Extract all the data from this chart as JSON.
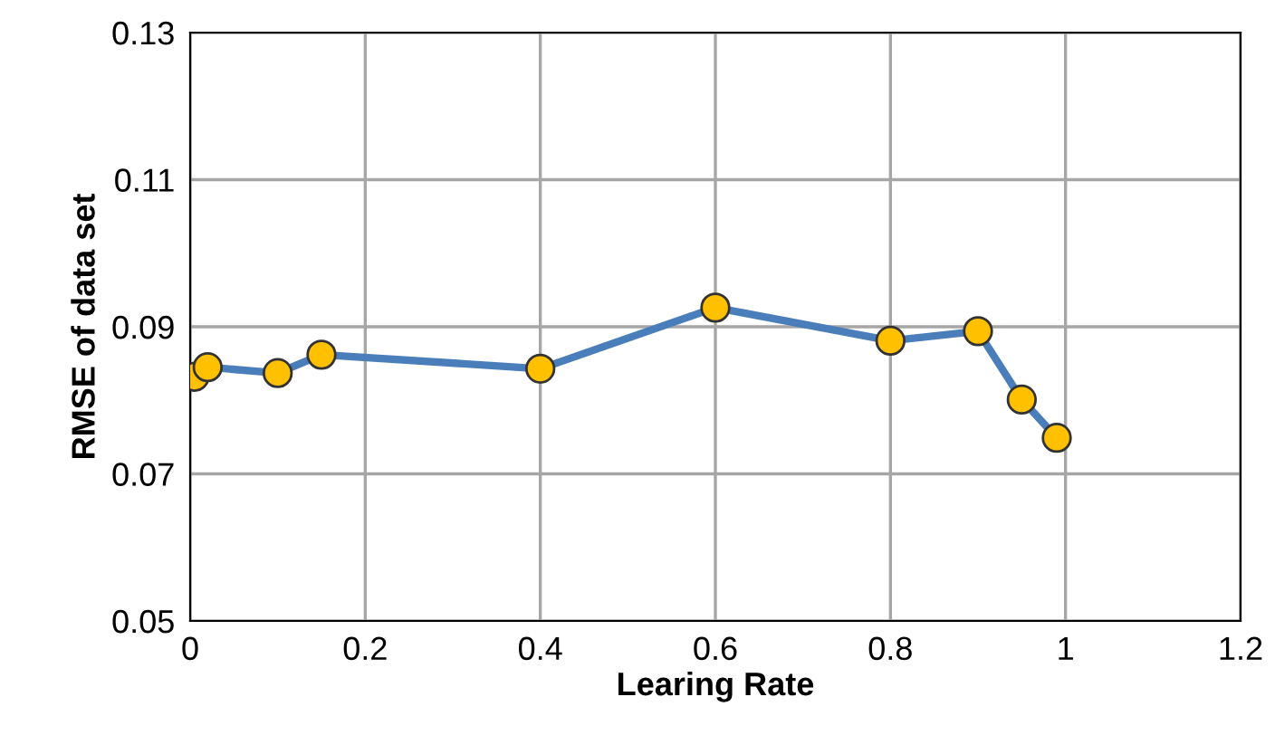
{
  "chart_data": {
    "type": "line",
    "xlabel": "Learing Rate",
    "ylabel": "RMSE of data set",
    "x": [
      0.005,
      0.02,
      0.1,
      0.15,
      0.4,
      0.6,
      0.8,
      0.9,
      0.95,
      0.99
    ],
    "series": [
      {
        "color": "#4a7ebb",
        "colors": [
          "#ffc000",
          "#ffc000",
          "#ffc000",
          "#ffc000",
          "#ffc000",
          "#ffc000",
          "#ffc000",
          "#ffc000",
          "#ffc000",
          "#ffc000"
        ],
        "values": [
          0.0832,
          0.0845,
          0.0837,
          0.0862,
          0.0843,
          0.0926,
          0.0881,
          0.0894,
          0.0801,
          0.0749
        ]
      }
    ],
    "xlim": [
      0,
      1.2
    ],
    "xticks": [
      0,
      0.2,
      0.4,
      0.6,
      0.8,
      1,
      1.2
    ],
    "ylim": [
      0.05,
      0.13
    ],
    "yticks": [
      {
        "value": 0.05,
        "label": "0.05"
      },
      {
        "value": 0.07,
        "label": "0.07"
      },
      {
        "value": 0.09,
        "label": "0.09"
      },
      {
        "value": 0.11,
        "label": "0.11"
      },
      {
        "value": 0.13,
        "label": "0.13"
      }
    ],
    "grid": true,
    "marker": "circle",
    "line_style": "solid",
    "legend": false
  }
}
